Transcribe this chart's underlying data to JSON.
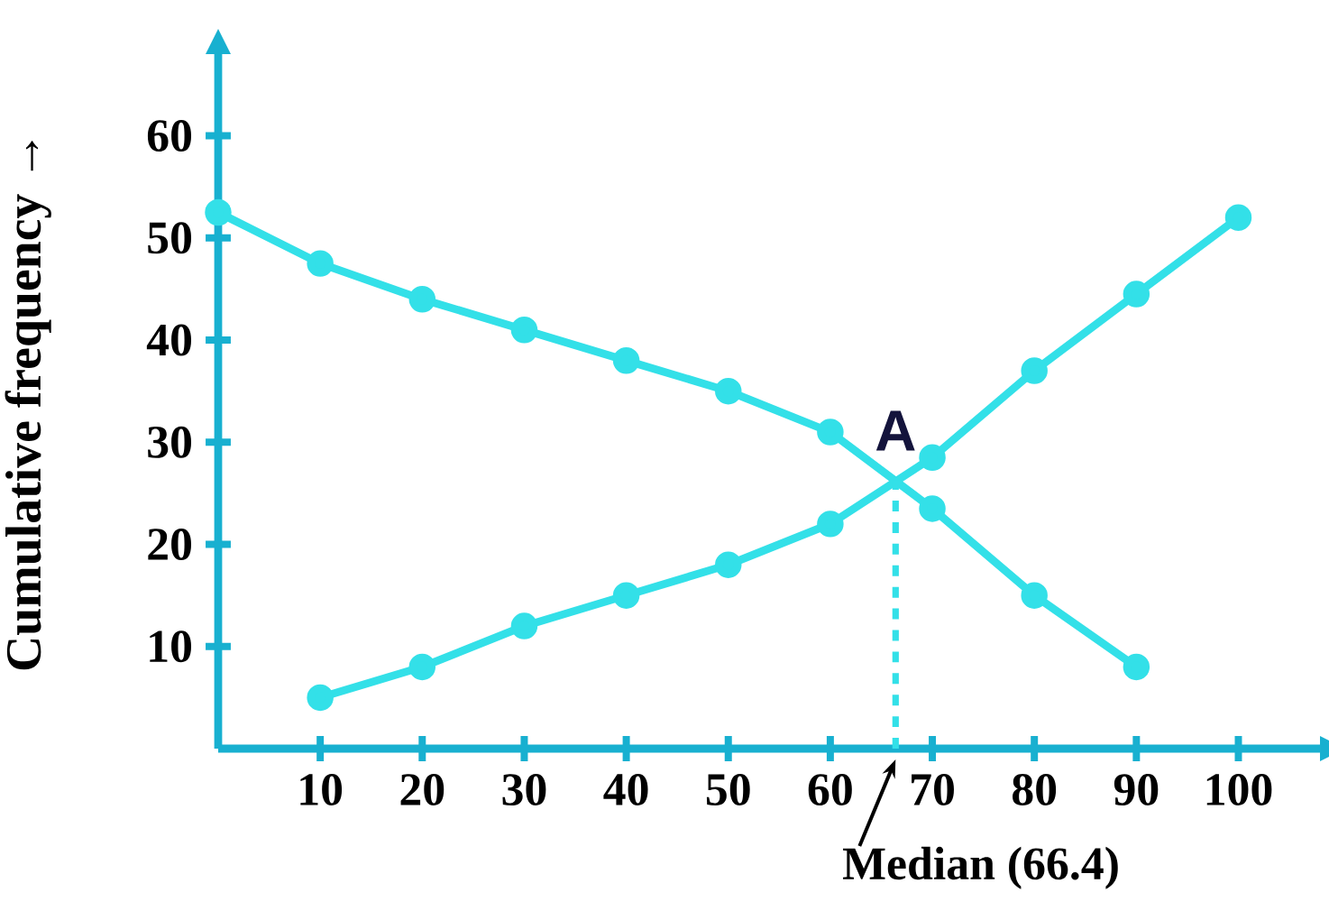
{
  "chart_data": {
    "type": "line",
    "ylabel": "Cumulative frequency →",
    "color": "#18b0d0",
    "marker": "circle",
    "line_style": "solid",
    "grid": false,
    "series": [
      {
        "x": [
          10,
          20,
          30,
          40,
          50,
          60,
          70,
          80,
          90,
          100
        ],
        "values": [
          5,
          8,
          12,
          15,
          18,
          22,
          28.5,
          37,
          44.5,
          52
        ],
        "color": "#33e0e8"
      },
      {
        "x": [
          0,
          10,
          20,
          30,
          40,
          50,
          60,
          70,
          80,
          90
        ],
        "values": [
          52.5,
          47.5,
          44,
          41,
          38,
          35,
          31,
          23.5,
          15,
          8
        ],
        "color": "#33e0e8"
      }
    ],
    "xlim": [
      0,
      108
    ],
    "ylim": [
      0,
      68
    ],
    "xticks": [
      10,
      20,
      30,
      40,
      50,
      60,
      70,
      80,
      90,
      100
    ],
    "yticks": [
      10,
      20,
      30,
      40,
      50,
      60
    ],
    "ref_lines": [
      {
        "axis": "x",
        "value": 66.4,
        "label": "Median (66.4)",
        "line_style": "dashed",
        "color": "#33e0e8"
      }
    ],
    "annotations": [
      {
        "text": "A",
        "x": 66.4,
        "y": 26.3
      }
    ]
  }
}
